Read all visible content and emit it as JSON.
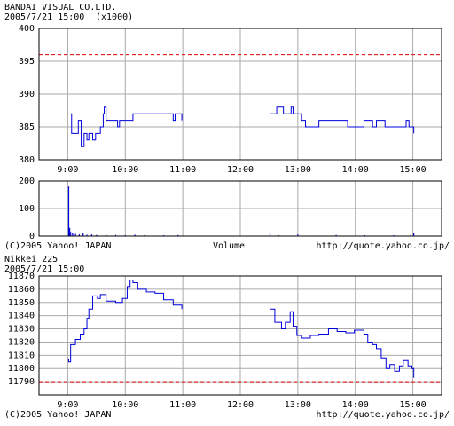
{
  "chart_data": [
    {
      "type": "line",
      "step": true,
      "title": "BANDAI VISUAL CO.LTD.",
      "subtitle": "2005/7/21 15:00",
      "unit": "(x1000)",
      "x": [
        543,
        544,
        551,
        554,
        557,
        560,
        562,
        566,
        569,
        574,
        577,
        578,
        580,
        592,
        594,
        608,
        650,
        652,
        659,
        700,
        751,
        758,
        765,
        773,
        775,
        784,
        788,
        802,
        832,
        849,
        858,
        862,
        871,
        893,
        896,
        901
      ],
      "series": [
        {
          "color": "#0000dd",
          "values": [
            387,
            384,
            386,
            382,
            384,
            383,
            384,
            383,
            384,
            385,
            387,
            388,
            386,
            385,
            386,
            387,
            386,
            387,
            386,
            null,
            387,
            388,
            387,
            388,
            387,
            386,
            385,
            386,
            385,
            386,
            385,
            386,
            385,
            386,
            385,
            384
          ]
        }
      ],
      "reference_line": 396,
      "reference_color": "#e00000",
      "xlim": [
        510,
        930
      ],
      "ylim": [
        380,
        400
      ],
      "yticks": [
        380,
        385,
        390,
        395,
        400
      ],
      "xticks": [
        {
          "value": 540,
          "label": "9:00"
        },
        {
          "value": 600,
          "label": "10:00"
        },
        {
          "value": 660,
          "label": "11:00"
        },
        {
          "value": 720,
          "label": "12:00"
        },
        {
          "value": 780,
          "label": "13:00"
        },
        {
          "value": 840,
          "label": "14:00"
        },
        {
          "value": 900,
          "label": "15:00"
        }
      ],
      "grid": true
    },
    {
      "type": "bar",
      "label": "Volume",
      "copyright": "(C)2005 Yahoo! JAPAN",
      "url": "http://quote.yahoo.co.jp/",
      "color": "#0000dd",
      "x": [
        541,
        542,
        543,
        545,
        548,
        552,
        556,
        560,
        565,
        570,
        580,
        590,
        600,
        610,
        620,
        640,
        655,
        751,
        760,
        780,
        800,
        820,
        850,
        880,
        898,
        901
      ],
      "values": [
        180,
        30,
        15,
        10,
        8,
        6,
        10,
        5,
        6,
        4,
        5,
        4,
        3,
        5,
        3,
        3,
        4,
        12,
        3,
        6,
        3,
        4,
        3,
        3,
        6,
        10
      ],
      "xlim": [
        510,
        930
      ],
      "ylim": [
        0,
        200
      ],
      "yticks": [
        0,
        100,
        200
      ],
      "grid": true
    },
    {
      "type": "line",
      "step": true,
      "title": "Nikkei 225",
      "subtitle": "2005/7/21 15:00",
      "copyright": "(C)2005 Yahoo! JAPAN",
      "url": "http://quote.yahoo.co.jp/",
      "x": [
        540,
        541,
        543,
        548,
        553,
        557,
        560,
        562,
        566,
        571,
        574,
        580,
        590,
        597,
        602,
        605,
        608,
        613,
        622,
        631,
        640,
        650,
        659,
        700,
        751,
        756,
        763,
        767,
        772,
        775,
        779,
        784,
        793,
        802,
        812,
        821,
        830,
        839,
        849,
        853,
        858,
        862,
        867,
        872,
        876,
        881,
        886,
        890,
        895,
        899,
        901
      ],
      "series": [
        {
          "color": "#0000dd",
          "values": [
            11807,
            11805,
            11818,
            11822,
            11826,
            11830,
            11838,
            11845,
            11855,
            11853,
            11856,
            11851,
            11850,
            11853,
            11862,
            11867,
            11865,
            11860,
            11858,
            11857,
            11852,
            11848,
            11845,
            null,
            11845,
            11835,
            11830,
            11835,
            11843,
            11832,
            11825,
            11823,
            11825,
            11826,
            11830,
            11828,
            11827,
            11829,
            11826,
            11820,
            11818,
            11815,
            11808,
            11800,
            11803,
            11798,
            11802,
            11806,
            11802,
            11800,
            11793
          ]
        }
      ],
      "reference_line": 11790,
      "reference_color": "#e00000",
      "xlim": [
        510,
        930
      ],
      "ylim": [
        11780,
        11870
      ],
      "yticks": [
        11790,
        11800,
        11810,
        11820,
        11830,
        11840,
        11850,
        11860,
        11870
      ],
      "xticks": [
        {
          "value": 540,
          "label": "9:00"
        },
        {
          "value": 600,
          "label": "10:00"
        },
        {
          "value": 660,
          "label": "11:00"
        },
        {
          "value": 720,
          "label": "12:00"
        },
        {
          "value": 780,
          "label": "13:00"
        },
        {
          "value": 840,
          "label": "14:00"
        },
        {
          "value": 900,
          "label": "15:00"
        }
      ],
      "grid": true
    }
  ]
}
